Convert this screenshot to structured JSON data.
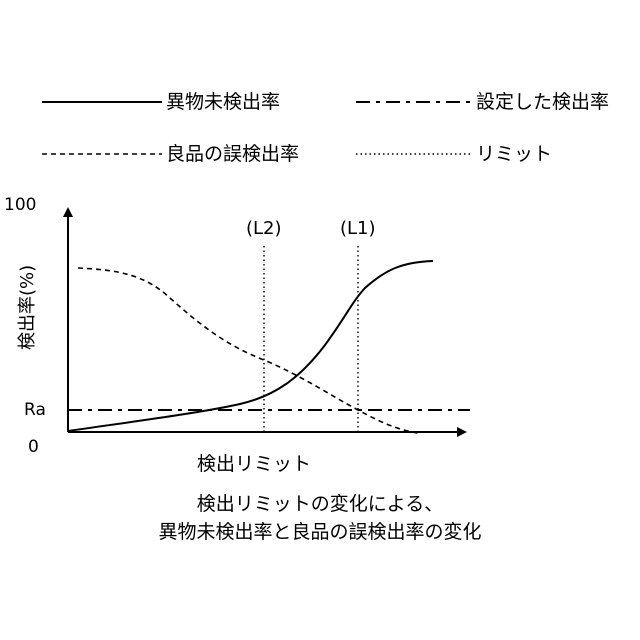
{
  "legend": {
    "items": [
      {
        "label": "異物未検出率",
        "style": "solid"
      },
      {
        "label": "設定した検出率",
        "style": "dash-dot"
      },
      {
        "label": "良品の誤検出率",
        "style": "dashed"
      },
      {
        "label": "リミット",
        "style": "dotted"
      }
    ]
  },
  "chart_data": {
    "type": "line",
    "ylabel": "検出率(%)",
    "xlabel": "検出リミット",
    "y_ticks": [
      "100",
      "Ra",
      "0"
    ],
    "markers": [
      "(L2)",
      "(L1)"
    ],
    "series": [
      {
        "name": "異物未検出率",
        "style": "solid"
      },
      {
        "name": "良品の誤検出率",
        "style": "dashed"
      },
      {
        "name": "設定した検出率",
        "style": "dash-dot"
      },
      {
        "name": "リミット",
        "style": "dotted"
      }
    ]
  },
  "caption": {
    "line1": "検出リミットの変化による、",
    "line2": "異物未検出率と良品の誤検出率の変化"
  }
}
